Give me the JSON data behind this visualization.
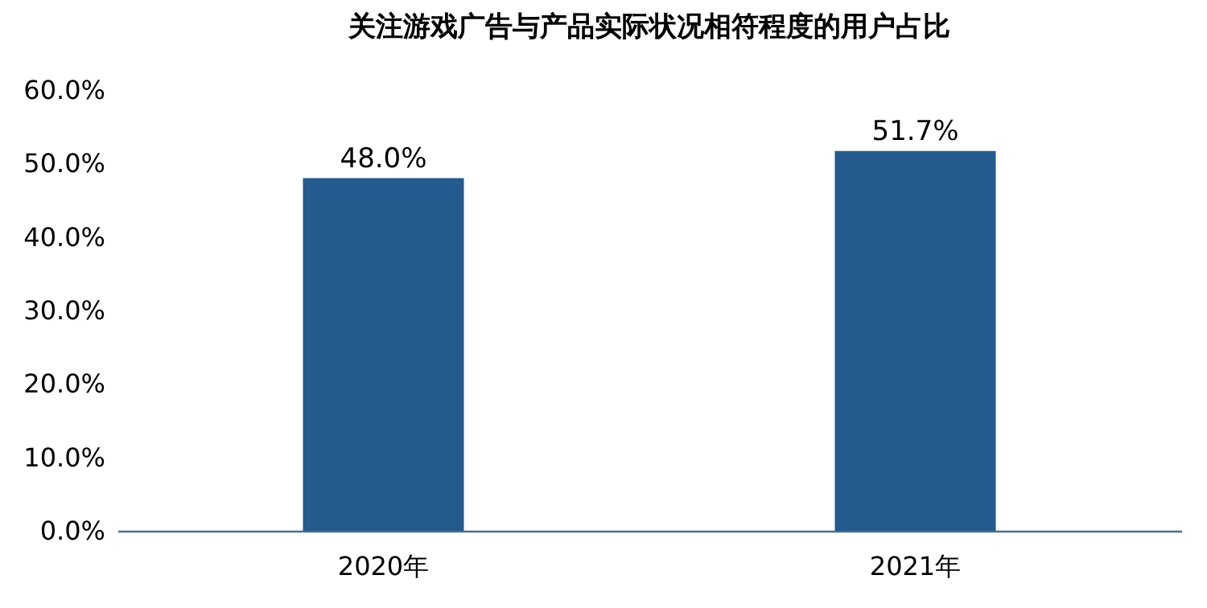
{
  "chart_data": {
    "type": "bar",
    "title": "关注游戏广告与产品实际状况相符程度的用户占比",
    "categories": [
      "2020年",
      "2021年"
    ],
    "series": [
      {
        "color": "#245a8e",
        "values": [
          48.0,
          51.7
        ],
        "value_labels": [
          "48.0%",
          "51.7%"
        ]
      }
    ],
    "ylim": [
      0,
      60
    ],
    "yticks": [
      {
        "value": 0,
        "label": "0.0%"
      },
      {
        "value": 10,
        "label": "10.0%"
      },
      {
        "value": 20,
        "label": "20.0%"
      },
      {
        "value": 30,
        "label": "30.0%"
      },
      {
        "value": 40,
        "label": "40.0%"
      },
      {
        "value": 50,
        "label": "50.0%"
      },
      {
        "value": 60,
        "label": "60.0%"
      }
    ],
    "grid": false
  }
}
